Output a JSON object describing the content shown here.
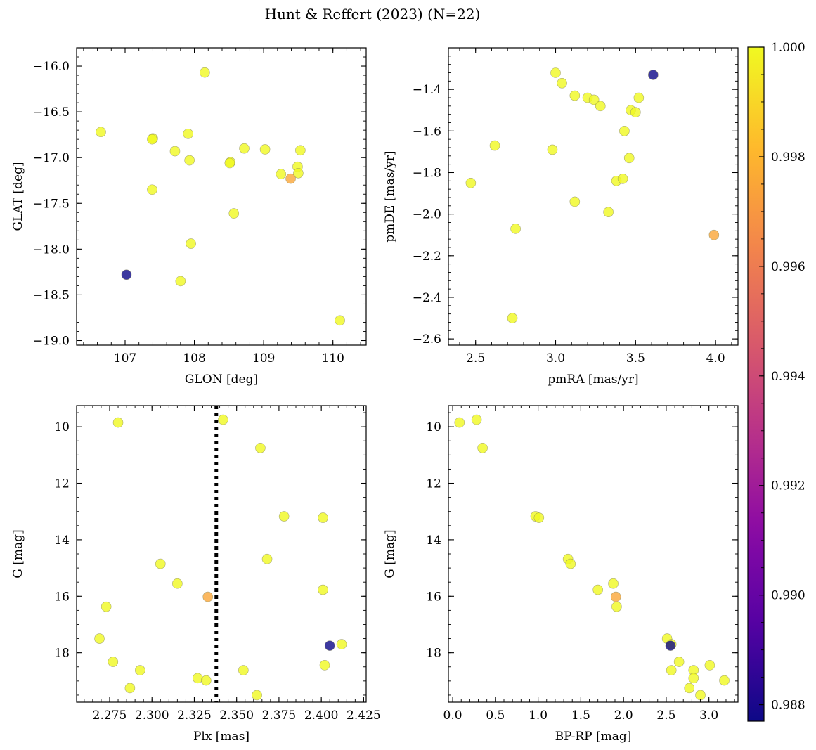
{
  "title": "Hunt & Reffert (2023) (N=22)",
  "colorbar": {
    "min": 0.9877,
    "max": 1.0,
    "ticks": [
      0.988,
      0.99,
      0.992,
      0.994,
      0.996,
      0.998,
      1.0
    ],
    "tick_labels": [
      "0.988",
      "0.990",
      "0.992",
      "0.994",
      "0.996",
      "0.998",
      "1.000"
    ],
    "colormap": "plasma"
  },
  "chart_data": [
    {
      "id": "glon-glat",
      "type": "scatter",
      "xlabel": "GLON [deg]",
      "ylabel": "GLAT [deg]",
      "xlim": [
        106.3,
        110.48
      ],
      "ylim": [
        -19.05,
        -15.8
      ],
      "y_inverted": false,
      "xticks": [
        107,
        108,
        109,
        110
      ],
      "xtick_labels": [
        "107",
        "108",
        "109",
        "110"
      ],
      "yticks": [
        -16.0,
        -16.5,
        -17.0,
        -17.5,
        -18.0,
        -18.5,
        -19.0
      ],
      "ytick_labels": [
        "−16.0",
        "−16.5",
        "−17.0",
        "−17.5",
        "−18.0",
        "−18.5",
        "−19.0"
      ],
      "x": [
        108.15,
        106.65,
        107.4,
        107.39,
        107.91,
        107.72,
        107.93,
        108.52,
        108.51,
        108.72,
        109.02,
        109.53,
        109.49,
        109.25,
        109.5,
        109.39,
        107.39,
        108.57,
        107.95,
        107.02,
        107.8,
        110.1
      ],
      "y": [
        -16.07,
        -16.72,
        -16.79,
        -16.8,
        -16.74,
        -16.93,
        -17.03,
        -17.05,
        -17.06,
        -16.9,
        -16.91,
        -16.92,
        -17.1,
        -17.18,
        -17.17,
        -17.23,
        -17.35,
        -17.61,
        -17.94,
        -18.28,
        -18.35,
        -18.78
      ],
      "c": [
        1,
        1,
        1,
        1,
        1,
        1,
        1,
        1,
        1,
        1,
        1,
        1,
        1,
        1,
        1,
        0.9975,
        1,
        1,
        1,
        0.9877,
        1,
        1
      ]
    },
    {
      "id": "pmra-pmde",
      "type": "scatter",
      "xlabel": "pmRA [mas/yr]",
      "ylabel": "pmDE [mas/yr]",
      "xlim": [
        2.33,
        4.14
      ],
      "ylim": [
        -2.63,
        -1.2
      ],
      "y_inverted": false,
      "xticks": [
        2.5,
        3.0,
        3.5,
        4.0
      ],
      "xtick_labels": [
        "2.5",
        "3.0",
        "3.5",
        "4.0"
      ],
      "yticks": [
        -1.4,
        -1.6,
        -1.8,
        -2.0,
        -2.2,
        -2.4,
        -2.6
      ],
      "ytick_labels": [
        "−1.4",
        "−1.6",
        "−1.8",
        "−2.0",
        "−2.2",
        "−2.4",
        "−2.6"
      ],
      "x": [
        3.0,
        3.04,
        3.12,
        3.2,
        3.24,
        3.28,
        3.52,
        3.47,
        3.5,
        3.43,
        3.46,
        3.38,
        3.42,
        2.62,
        2.98,
        2.47,
        3.12,
        3.33,
        2.75,
        3.99,
        2.73,
        3.61
      ],
      "y": [
        -1.32,
        -1.37,
        -1.43,
        -1.44,
        -1.45,
        -1.48,
        -1.44,
        -1.5,
        -1.51,
        -1.6,
        -1.73,
        -1.84,
        -1.83,
        -1.67,
        -1.69,
        -1.85,
        -1.94,
        -1.99,
        -2.07,
        -2.1,
        -2.5,
        -1.33
      ],
      "c": [
        1,
        1,
        1,
        1,
        1,
        1,
        1,
        1,
        1,
        1,
        1,
        1,
        1,
        1,
        1,
        1,
        1,
        1,
        1,
        0.9975,
        1,
        0.9877
      ]
    },
    {
      "id": "plx-g",
      "type": "scatter",
      "xlabel": "Plx [mas]",
      "ylabel": "G [mag]",
      "xlim": [
        2.2555,
        2.4265
      ],
      "ylim": [
        9.25,
        19.75
      ],
      "y_inverted": true,
      "vline": {
        "x": 2.338,
        "style": "dotted"
      },
      "xticks": [
        2.275,
        2.3,
        2.325,
        2.35,
        2.375,
        2.4,
        2.425
      ],
      "xtick_labels": [
        "2.275",
        "2.300",
        "2.325",
        "2.350",
        "2.375",
        "2.400",
        "2.425"
      ],
      "yticks": [
        10,
        12,
        14,
        16,
        18
      ],
      "ytick_labels": [
        "10",
        "12",
        "14",
        "16",
        "18"
      ],
      "x": [
        2.28,
        2.342,
        2.364,
        2.378,
        2.401,
        2.305,
        2.368,
        2.315,
        2.401,
        2.333,
        2.273,
        2.269,
        2.405,
        2.412,
        2.277,
        2.402,
        2.293,
        2.354,
        2.287,
        2.327,
        2.332,
        2.362
      ],
      "y": [
        9.85,
        9.75,
        10.75,
        13.17,
        13.22,
        14.85,
        14.68,
        15.55,
        15.77,
        16.02,
        16.37,
        17.5,
        17.75,
        17.7,
        18.32,
        18.44,
        18.62,
        18.62,
        19.25,
        18.9,
        18.98,
        19.5
      ],
      "c": [
        1,
        1,
        1,
        1,
        1,
        1,
        1,
        1,
        1,
        0.9975,
        1,
        1,
        0.9877,
        1,
        1,
        1,
        1,
        1,
        1,
        1,
        1,
        1
      ]
    },
    {
      "id": "bprp-g",
      "type": "scatter",
      "xlabel": "BP-RP [mag]",
      "ylabel": "G [mag]",
      "xlim": [
        -0.05,
        3.34
      ],
      "ylim": [
        9.25,
        19.75
      ],
      "y_inverted": true,
      "xticks": [
        0.0,
        0.5,
        1.0,
        1.5,
        2.0,
        2.5,
        3.0
      ],
      "xtick_labels": [
        "0.0",
        "0.5",
        "1.0",
        "1.5",
        "2.0",
        "2.5",
        "3.0"
      ],
      "yticks": [
        10,
        12,
        14,
        16,
        18
      ],
      "ytick_labels": [
        "10",
        "12",
        "14",
        "16",
        "18"
      ],
      "x": [
        0.08,
        0.28,
        0.35,
        0.97,
        1.01,
        1.35,
        1.38,
        1.7,
        1.88,
        1.91,
        1.92,
        2.51,
        2.56,
        2.55,
        2.65,
        2.56,
        2.82,
        2.82,
        2.77,
        2.9,
        3.01,
        3.18
      ],
      "y": [
        9.85,
        9.75,
        10.75,
        13.17,
        13.22,
        14.68,
        14.85,
        15.77,
        15.55,
        16.02,
        16.37,
        17.5,
        17.7,
        17.75,
        18.32,
        18.62,
        18.62,
        18.9,
        19.25,
        19.5,
        18.44,
        18.98
      ],
      "c": [
        1,
        1,
        1,
        1,
        1,
        1,
        1,
        1,
        1,
        0.9975,
        1,
        1,
        1,
        0.9877,
        1,
        1,
        1,
        1,
        1,
        1,
        1,
        1
      ]
    }
  ]
}
